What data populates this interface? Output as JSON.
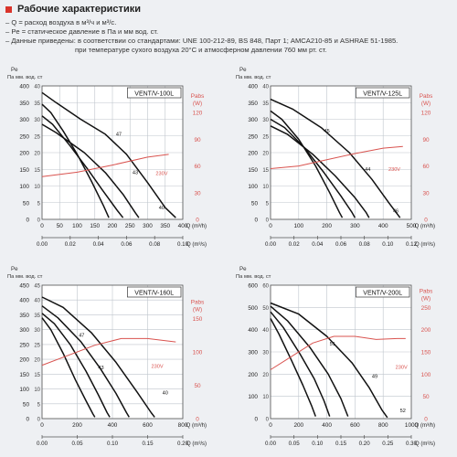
{
  "header": {
    "title": "Рабочие характеристики",
    "notes": [
      "– Q = расход воздуха в м³/ч и м³/с.",
      "– Pe = статическое давление в Па и мм вод. ст.",
      "– Данные приведены: в соответствии со стандартами: UNE 100-212-89, BS 848, Парт 1; AMCA210-85 и ASHRAE 51-1985.",
      "при температуре сухого воздуха 20°С и атмосферном давлении 760 мм рт. ст."
    ]
  },
  "colors": {
    "accent": "#d9342b",
    "curve": "#111111",
    "power": "#d9534f",
    "grid": "#bfc5cc"
  },
  "chart_data": [
    {
      "type": "line",
      "title": "VENT/V-100L",
      "ylabel": "Pe Па мм. вод. ст",
      "xlabel_top": "Q (m³/h)",
      "xlabel_bottom": "Q (m³/s)",
      "xlim": [
        0,
        400
      ],
      "ylim": [
        0,
        400
      ],
      "xticks": [
        0,
        50,
        100,
        150,
        200,
        250,
        300,
        350,
        400
      ],
      "yticks": [
        0,
        50,
        100,
        150,
        200,
        250,
        300,
        350,
        400
      ],
      "yticks_mm": [
        0,
        5,
        10,
        15,
        20,
        25,
        30,
        35,
        40
      ],
      "bottom_ticks": [
        "0.00",
        "0.02",
        "0.04",
        "0.06",
        "0.08",
        "0.10"
      ],
      "power_label": "Pabs (W)",
      "power_ticks": [
        0,
        30,
        60,
        90,
        120
      ],
      "power_max": 150,
      "series": [
        {
          "points": [
            [
              0,
              345
            ],
            [
              25,
              320
            ],
            [
              60,
              265
            ],
            [
              100,
              195
            ],
            [
              140,
              115
            ],
            [
              175,
              40
            ],
            [
              190,
              5
            ]
          ]
        },
        {
          "points": [
            [
              0,
              310
            ],
            [
              30,
              285
            ],
            [
              80,
              220
            ],
            [
              130,
              150
            ],
            [
              170,
              90
            ],
            [
              215,
              25
            ],
            [
              230,
              5
            ]
          ]
        },
        {
          "points": [
            [
              0,
              285
            ],
            [
              40,
              260
            ],
            [
              120,
              200
            ],
            [
              180,
              140
            ],
            [
              230,
              75
            ],
            [
              265,
              20
            ],
            [
              275,
              5
            ]
          ]
        },
        {
          "points": [
            [
              0,
              380
            ],
            [
              40,
              350
            ],
            [
              110,
              300
            ],
            [
              180,
              255
            ],
            [
              240,
              195
            ],
            [
              300,
              110
            ],
            [
              350,
              35
            ],
            [
              380,
              5
            ]
          ]
        }
      ],
      "power_curve": {
        "name": "230V",
        "points": [
          [
            0,
            48
          ],
          [
            100,
            53
          ],
          [
            200,
            61
          ],
          [
            300,
            70
          ],
          [
            360,
            73
          ]
        ]
      },
      "labels": [
        {
          "text": "47",
          "x": 218,
          "y": 245
        },
        {
          "text": "43",
          "x": 265,
          "y": 130
        },
        {
          "text": "40",
          "x": 340,
          "y": 25
        },
        {
          "text": "230V",
          "x": 340,
          "y": 128
        }
      ]
    },
    {
      "type": "line",
      "title": "VENT/V-125L",
      "ylabel": "Pe Па мм. вод. ст",
      "xlabel_top": "Q (m³/h)",
      "xlabel_bottom": "Q (m³/s)",
      "xlim": [
        0,
        500
      ],
      "ylim": [
        0,
        400
      ],
      "xticks": [
        0,
        100,
        200,
        300,
        400,
        500
      ],
      "yticks": [
        0,
        50,
        100,
        150,
        200,
        250,
        300,
        350,
        400
      ],
      "yticks_mm": [
        0,
        5,
        10,
        15,
        20,
        25,
        30,
        35,
        40
      ],
      "bottom_ticks": [
        "0.00",
        "0.02",
        "0.04",
        "0.06",
        "0.08",
        "0.10",
        "0.12"
      ],
      "power_label": "Pabs (W)",
      "power_ticks": [
        0,
        30,
        60,
        90,
        120
      ],
      "power_max": 150,
      "series": [
        {
          "points": [
            [
              0,
              325
            ],
            [
              40,
              300
            ],
            [
              100,
              240
            ],
            [
              160,
              160
            ],
            [
              210,
              80
            ],
            [
              245,
              20
            ],
            [
              255,
              5
            ]
          ]
        },
        {
          "points": [
            [
              0,
              300
            ],
            [
              50,
              275
            ],
            [
              120,
              215
            ],
            [
              190,
              140
            ],
            [
              250,
              70
            ],
            [
              290,
              20
            ],
            [
              300,
              5
            ]
          ]
        },
        {
          "points": [
            [
              0,
              280
            ],
            [
              60,
              255
            ],
            [
              150,
              195
            ],
            [
              230,
              130
            ],
            [
              300,
              65
            ],
            [
              340,
              20
            ],
            [
              350,
              5
            ]
          ]
        },
        {
          "points": [
            [
              0,
              360
            ],
            [
              80,
              330
            ],
            [
              180,
              275
            ],
            [
              280,
              200
            ],
            [
              360,
              120
            ],
            [
              420,
              50
            ],
            [
              460,
              5
            ]
          ]
        }
      ],
      "power_curve": {
        "name": "230V",
        "points": [
          [
            0,
            57
          ],
          [
            100,
            60
          ],
          [
            200,
            67
          ],
          [
            300,
            74
          ],
          [
            400,
            80
          ],
          [
            470,
            82
          ]
        ]
      },
      "labels": [
        {
          "text": "45",
          "x": 200,
          "y": 255
        },
        {
          "text": "44",
          "x": 345,
          "y": 140
        },
        {
          "text": "46",
          "x": 445,
          "y": 15
        },
        {
          "text": "230V",
          "x": 440,
          "y": 140
        }
      ]
    },
    {
      "type": "line",
      "title": "VENT/V-160L",
      "ylabel": "Pe Па мм. вод. ст",
      "xlabel_top": "Q (m³/h)",
      "xlabel_bottom": "Q (m³/s)",
      "xlim": [
        0,
        800
      ],
      "ylim": [
        0,
        450
      ],
      "xticks": [
        0,
        200,
        400,
        600,
        800
      ],
      "yticks": [
        0,
        50,
        100,
        150,
        200,
        250,
        300,
        350,
        400,
        450
      ],
      "yticks_mm": [
        0,
        5,
        10,
        15,
        20,
        25,
        30,
        35,
        40,
        45
      ],
      "bottom_ticks": [
        "0.00",
        "0.05",
        "0.10",
        "0.15",
        "0.20"
      ],
      "power_label": "Pabs (W)",
      "power_ticks": [
        0,
        50,
        100,
        150
      ],
      "power_max": 200,
      "series": [
        {
          "points": [
            [
              0,
              340
            ],
            [
              50,
              300
            ],
            [
              120,
              220
            ],
            [
              190,
              130
            ],
            [
              250,
              60
            ],
            [
              290,
              15
            ],
            [
              300,
              5
            ]
          ]
        },
        {
          "points": [
            [
              0,
              355
            ],
            [
              70,
              320
            ],
            [
              160,
              250
            ],
            [
              250,
              160
            ],
            [
              320,
              80
            ],
            [
              370,
              20
            ],
            [
              385,
              5
            ]
          ]
        },
        {
          "points": [
            [
              0,
              380
            ],
            [
              90,
              340
            ],
            [
              220,
              260
            ],
            [
              330,
              170
            ],
            [
              420,
              85
            ],
            [
              480,
              20
            ],
            [
              495,
              5
            ]
          ]
        },
        {
          "points": [
            [
              0,
              410
            ],
            [
              120,
              375
            ],
            [
              280,
              290
            ],
            [
              420,
              190
            ],
            [
              540,
              90
            ],
            [
              620,
              20
            ],
            [
              640,
              5
            ]
          ]
        }
      ],
      "power_curve": {
        "name": "230V",
        "points": [
          [
            0,
            80
          ],
          [
            150,
            95
          ],
          [
            300,
            110
          ],
          [
            450,
            120
          ],
          [
            600,
            120
          ],
          [
            760,
            115
          ]
        ]
      },
      "labels": [
        {
          "text": "47",
          "x": 225,
          "y": 270
        },
        {
          "text": "43",
          "x": 335,
          "y": 160
        },
        {
          "text": "40",
          "x": 700,
          "y": 75
        },
        {
          "text": "230V",
          "x": 655,
          "y": 165
        }
      ]
    },
    {
      "type": "line",
      "title": "VENT/V-200L",
      "ylabel": "Pe Па мм. вод. ст",
      "xlabel_top": "Q (m³/h)",
      "xlabel_bottom": "Q (m³/s)",
      "xlim": [
        0,
        1000
      ],
      "ylim": [
        0,
        600
      ],
      "xticks": [
        0,
        200,
        400,
        600,
        800,
        1000
      ],
      "yticks": [
        0,
        100,
        200,
        300,
        400,
        500,
        600
      ],
      "yticks_mm": [
        0,
        10,
        20,
        30,
        40,
        50,
        60
      ],
      "bottom_ticks": [
        "0.00",
        "0.05",
        "0.10",
        "0.15",
        "0.20",
        "0.25",
        "0.30"
      ],
      "power_label": "Pabs (W)",
      "power_ticks": [
        0,
        50,
        100,
        150,
        200,
        250
      ],
      "power_max": 300,
      "series": [
        {
          "points": [
            [
              0,
              450
            ],
            [
              60,
              380
            ],
            [
              150,
              260
            ],
            [
              230,
              150
            ],
            [
              290,
              60
            ],
            [
              320,
              10
            ]
          ]
        },
        {
          "points": [
            [
              0,
              480
            ],
            [
              90,
              410
            ],
            [
              210,
              290
            ],
            [
              310,
              180
            ],
            [
              380,
              80
            ],
            [
              420,
              10
            ]
          ]
        },
        {
          "points": [
            [
              0,
              505
            ],
            [
              120,
              440
            ],
            [
              280,
              320
            ],
            [
              410,
              200
            ],
            [
              500,
              90
            ],
            [
              550,
              10
            ]
          ]
        },
        {
          "points": [
            [
              0,
              520
            ],
            [
              200,
              470
            ],
            [
              400,
              370
            ],
            [
              580,
              250
            ],
            [
              700,
              140
            ],
            [
              790,
              40
            ],
            [
              830,
              5
            ]
          ]
        }
      ],
      "power_curve": {
        "name": "230V",
        "points": [
          [
            0,
            110
          ],
          [
            150,
            140
          ],
          [
            300,
            170
          ],
          [
            450,
            185
          ],
          [
            600,
            185
          ],
          [
            750,
            178
          ],
          [
            900,
            180
          ],
          [
            960,
            180
          ]
        ]
      },
      "labels": [
        {
          "text": "51",
          "x": 440,
          "y": 320
        },
        {
          "text": "49",
          "x": 740,
          "y": 175
        },
        {
          "text": "52",
          "x": 940,
          "y": 20
        },
        {
          "text": "230V",
          "x": 930,
          "y": 215
        }
      ]
    }
  ]
}
